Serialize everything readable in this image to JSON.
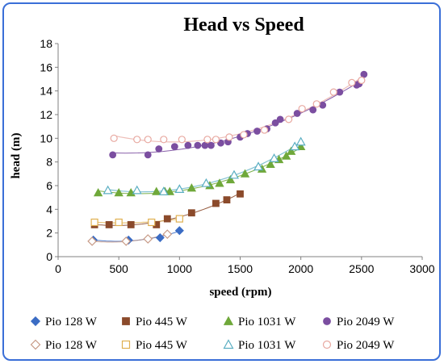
{
  "chart_data": {
    "type": "scatter",
    "title": "Head vs Speed",
    "xlabel": "speed (rpm)",
    "ylabel": "head (m)",
    "xlim": [
      0,
      3000
    ],
    "ylim": [
      0,
      18
    ],
    "xticks": [
      0,
      500,
      1000,
      1500,
      2000,
      2500,
      3000
    ],
    "yticks": [
      0,
      2,
      4,
      6,
      8,
      10,
      12,
      14,
      16,
      18
    ],
    "grid": false,
    "legend": "bottom",
    "series": [
      {
        "name": "Pio 128 W",
        "marker": "diamond",
        "filled": true,
        "color": "#3b6cc4",
        "x": [
          290,
          580,
          840,
          1000
        ],
        "y": [
          1.4,
          1.4,
          1.6,
          2.2
        ]
      },
      {
        "name": "Pio 445 W",
        "marker": "square",
        "filled": true,
        "color": "#8b4a2b",
        "x": [
          300,
          420,
          600,
          810,
          900,
          1100,
          1300,
          1390,
          1500
        ],
        "y": [
          2.7,
          2.7,
          2.7,
          2.7,
          3.2,
          3.7,
          4.5,
          4.8,
          5.3
        ]
      },
      {
        "name": "Pio 1031 W",
        "marker": "triangle",
        "filled": true,
        "color": "#6fa83a",
        "x": [
          330,
          500,
          600,
          810,
          880,
          920,
          1100,
          1250,
          1330,
          1420,
          1540,
          1680,
          1750,
          1820,
          1880,
          1920,
          2000
        ],
        "y": [
          5.4,
          5.4,
          5.4,
          5.5,
          5.5,
          5.5,
          5.8,
          6.0,
          6.2,
          6.5,
          7.0,
          7.4,
          7.8,
          8.2,
          8.5,
          8.9,
          9.3
        ]
      },
      {
        "name": "Pio 2049 W",
        "marker": "circle",
        "filled": true,
        "color": "#7b4ea0",
        "x": [
          450,
          740,
          830,
          960,
          1070,
          1150,
          1210,
          1260,
          1340,
          1400,
          1500,
          1560,
          1640,
          1720,
          1790,
          1830,
          1970,
          2100,
          2180,
          2320,
          2460,
          2480,
          2500,
          2520
        ],
        "y": [
          8.6,
          8.6,
          9.1,
          9.3,
          9.4,
          9.4,
          9.4,
          9.4,
          9.6,
          9.7,
          10.1,
          10.4,
          10.6,
          10.8,
          11.3,
          11.6,
          12.1,
          12.4,
          12.8,
          13.9,
          14.5,
          14.6,
          14.9,
          15.4
        ]
      },
      {
        "name": "Pio 128 W",
        "marker": "diamond",
        "filled": false,
        "color": "#c79a86",
        "x": [
          280,
          560,
          740,
          900
        ],
        "y": [
          1.3,
          1.3,
          1.5,
          1.9
        ]
      },
      {
        "name": "Pio 445 W",
        "marker": "square",
        "filled": false,
        "color": "#e0b050",
        "x": [
          300,
          500,
          770,
          1000
        ],
        "y": [
          2.9,
          2.9,
          2.9,
          3.2
        ]
      },
      {
        "name": "Pio 1031 W",
        "marker": "triangle",
        "filled": false,
        "color": "#5aaec2",
        "x": [
          410,
          650,
          870,
          1000,
          1220,
          1450,
          1650,
          1780,
          1950,
          2000
        ],
        "y": [
          5.6,
          5.6,
          5.5,
          5.7,
          6.2,
          6.9,
          7.6,
          8.3,
          9.3,
          9.7
        ]
      },
      {
        "name": "Pio 2049 W",
        "marker": "circle",
        "filled": false,
        "color": "#e8a8a0",
        "x": [
          460,
          650,
          740,
          870,
          1020,
          1230,
          1300,
          1410,
          1530,
          1700,
          1900,
          2010,
          2130,
          2270,
          2420,
          2500
        ],
        "y": [
          10.0,
          9.9,
          9.9,
          9.9,
          9.9,
          9.9,
          9.9,
          10.1,
          10.3,
          10.7,
          11.6,
          12.5,
          12.9,
          13.9,
          14.7,
          14.9
        ]
      }
    ]
  }
}
